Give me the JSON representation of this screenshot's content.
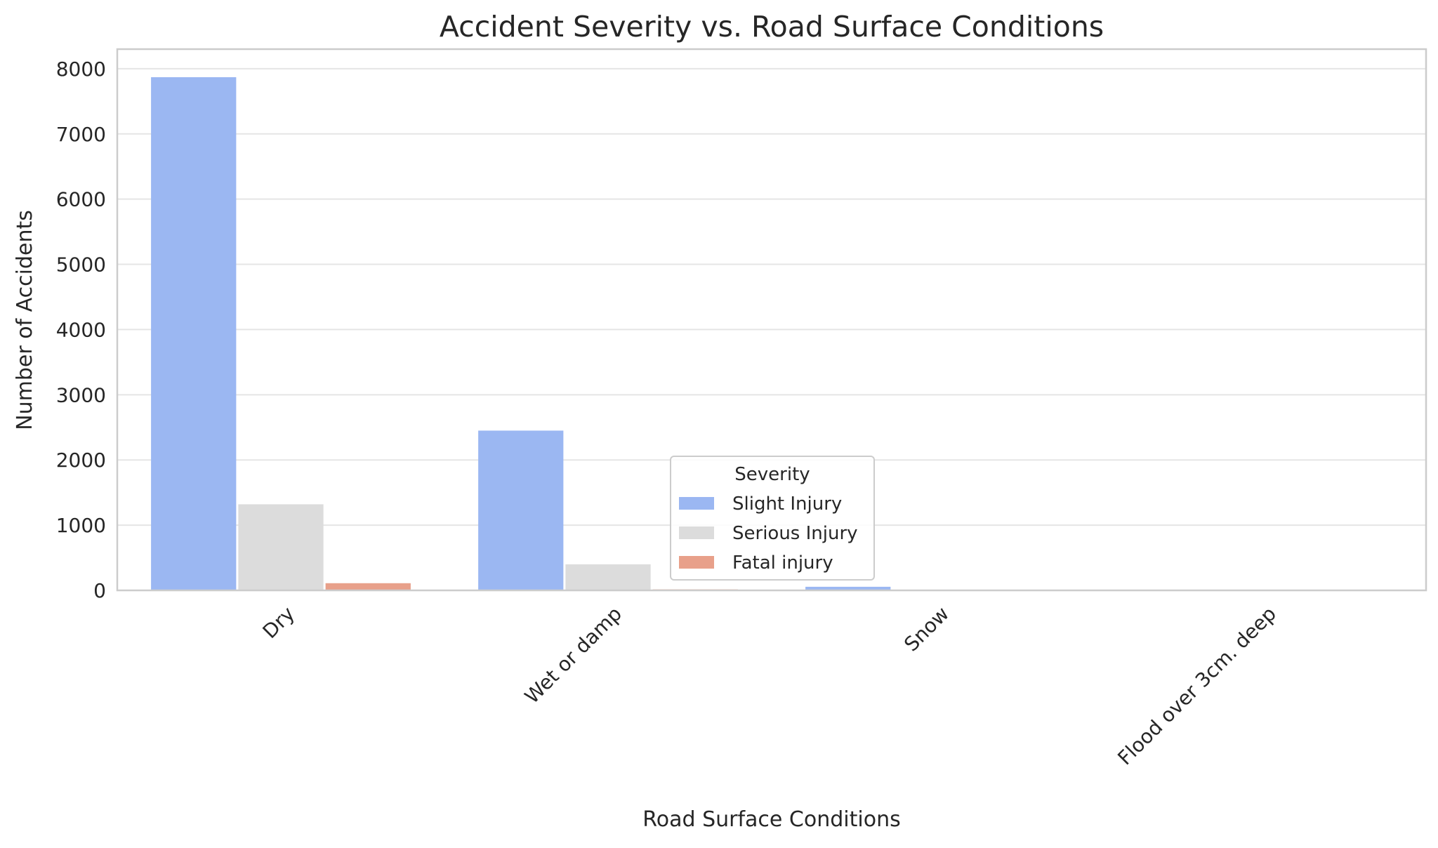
{
  "chart_data": {
    "type": "bar",
    "title": "Accident Severity vs. Road Surface Conditions",
    "xlabel": "Road Surface Conditions",
    "ylabel": "Number of Accidents",
    "categories": [
      "Dry",
      "Wet or damp",
      "Snow",
      "Flood over 3cm. deep"
    ],
    "series": [
      {
        "name": "Slight Injury",
        "color": "#9bb7f2",
        "values": [
          7870,
          2450,
          55,
          2
        ]
      },
      {
        "name": "Serious Injury",
        "color": "#dcdcdc",
        "values": [
          1320,
          400,
          5,
          0
        ]
      },
      {
        "name": "Fatal injury",
        "color": "#e8a08a",
        "values": [
          110,
          15,
          0,
          0
        ]
      }
    ],
    "ylim": [
      0,
      8300
    ],
    "yticks": [
      0,
      1000,
      2000,
      3000,
      4000,
      5000,
      6000,
      7000,
      8000
    ],
    "grid": true,
    "legend": {
      "title": "Severity",
      "placement": "lower-center"
    },
    "style": {
      "grid_color": "#e5e5e5",
      "frame_color": "#cccccc",
      "text_color": "#262626"
    }
  }
}
